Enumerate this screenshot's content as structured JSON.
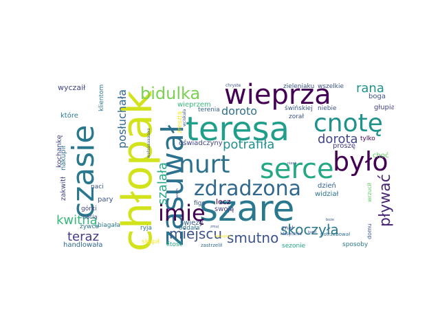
{
  "words": [
    {
      "text": "szare",
      "color": "#2a788e"
    },
    {
      "text": "chłopak",
      "color": "#d2e21b"
    },
    {
      "text": "teresa",
      "color": "#1f9e89"
    },
    {
      "text": "zasuwał",
      "color": "#2c718e"
    },
    {
      "text": "czasie",
      "color": "#2a788e"
    },
    {
      "text": "wieprza",
      "color": "#440154"
    },
    {
      "text": "serce",
      "color": "#22a884"
    },
    {
      "text": "nurt",
      "color": "#2c728e"
    },
    {
      "text": "było",
      "color": "#440154"
    },
    {
      "text": "cnotę",
      "color": "#20928c"
    },
    {
      "text": "zdradzona",
      "color": "#31688e"
    },
    {
      "text": "imię",
      "color": "#440154"
    },
    {
      "text": "bidulka",
      "color": "#7ad151"
    },
    {
      "text": "pływać",
      "color": "#482878"
    },
    {
      "text": "skoczyła",
      "color": "#2a788e"
    },
    {
      "text": "miejscu",
      "color": "#3b528b"
    },
    {
      "text": "smutno",
      "color": "#3b528b"
    },
    {
      "text": "potrafiła",
      "color": "#21918c"
    },
    {
      "text": "dorota",
      "color": "#414487"
    },
    {
      "text": "szalała",
      "color": "#22a884"
    },
    {
      "text": "kwitną",
      "color": "#35b779"
    },
    {
      "text": "teraz",
      "color": "#443983"
    },
    {
      "text": "posłuchała",
      "color": "#31688e"
    },
    {
      "text": "rana",
      "color": "#20928c"
    },
    {
      "text": "doroto",
      "color": "#2c728e"
    },
    {
      "text": "wyczaił",
      "color": "#414487"
    },
    {
      "text": "które",
      "color": "#2a788e"
    },
    {
      "text": "kochankę",
      "color": "#414487"
    },
    {
      "text": "nakupił",
      "color": "#2c728e"
    },
    {
      "text": "zakwitł",
      "color": "#414487"
    },
    {
      "text": "handlowała",
      "color": "#31688e"
    },
    {
      "text": "żywca",
      "color": "#2c728e"
    },
    {
      "text": "górki",
      "color": "#414487"
    },
    {
      "text": "nacią",
      "color": "#3e4989"
    },
    {
      "text": "pary",
      "color": "#3b528b"
    },
    {
      "text": "naci",
      "color": "#3b528b"
    },
    {
      "text": "biagała",
      "color": "#2a788e"
    },
    {
      "text": "klientom",
      "color": "#2a788e"
    },
    {
      "text": "wieprzem",
      "color": "#35b779"
    },
    {
      "text": "oświadczyny",
      "color": "#414487"
    },
    {
      "text": "zresztą",
      "color": "#fde725"
    },
    {
      "text": "terenia",
      "color": "#355f8d"
    },
    {
      "text": "zorał",
      "color": "#3b528b"
    },
    {
      "text": "świeży",
      "color": "#355f8d"
    },
    {
      "text": "dzień",
      "color": "#355f8d"
    },
    {
      "text": "widział",
      "color": "#2c728e"
    },
    {
      "text": "lecz",
      "color": "#440154"
    },
    {
      "text": "swoją",
      "color": "#433e85"
    },
    {
      "text": "figo",
      "color": "#3b528b"
    },
    {
      "text": "ryja",
      "color": "#2c728e"
    },
    {
      "text": "oddała",
      "color": "#2c728e"
    },
    {
      "text": "skupił",
      "color": "#fde725"
    },
    {
      "text": "litość",
      "color": "#27ad81"
    },
    {
      "text": "znał",
      "color": "#3b528b"
    },
    {
      "text": "sezonie",
      "color": "#22a884"
    },
    {
      "text": "sposoby",
      "color": "#2a788e"
    },
    {
      "text": "zastrzelił",
      "color": "#31688e"
    },
    {
      "text": "klasycznie",
      "color": "#3b528b"
    },
    {
      "text": "potrzebował",
      "color": "#2c728e"
    },
    {
      "text": "domu",
      "color": "#3b528b"
    },
    {
      "text": "wrzucił",
      "color": "#5ec962"
    },
    {
      "text": "choć",
      "color": "#5ec962"
    },
    {
      "text": "tylko",
      "color": "#440154"
    },
    {
      "text": "proszę",
      "color": "#443983"
    },
    {
      "text": "głupia",
      "color": "#414487"
    },
    {
      "text": "boga",
      "color": "#3b528b"
    },
    {
      "text": "świńskiej",
      "color": "#3b528b"
    },
    {
      "text": "niebie",
      "color": "#3b528b"
    },
    {
      "text": "zieleniaku",
      "color": "#3b528b"
    },
    {
      "text": "wszelkie",
      "color": "#3b528b"
    },
    {
      "text": "chryste",
      "color": "#3b528b"
    },
    {
      "text": "wciskała",
      "color": "#3b528b"
    },
    {
      "text": "razem",
      "color": "#3b528b"
    },
    {
      "text": "zmuj",
      "color": "#3b528b"
    },
    {
      "text": "kupił",
      "color": "#3b528b"
    },
    {
      "text": "boże",
      "color": "#3b528b"
    },
    {
      "text": "niech",
      "color": "#3b528b"
    },
    {
      "text": "nastąpną",
      "color": "#fde725"
    },
    {
      "text": "wałaaaaaaaaa",
      "color": "#3b528b"
    }
  ]
}
